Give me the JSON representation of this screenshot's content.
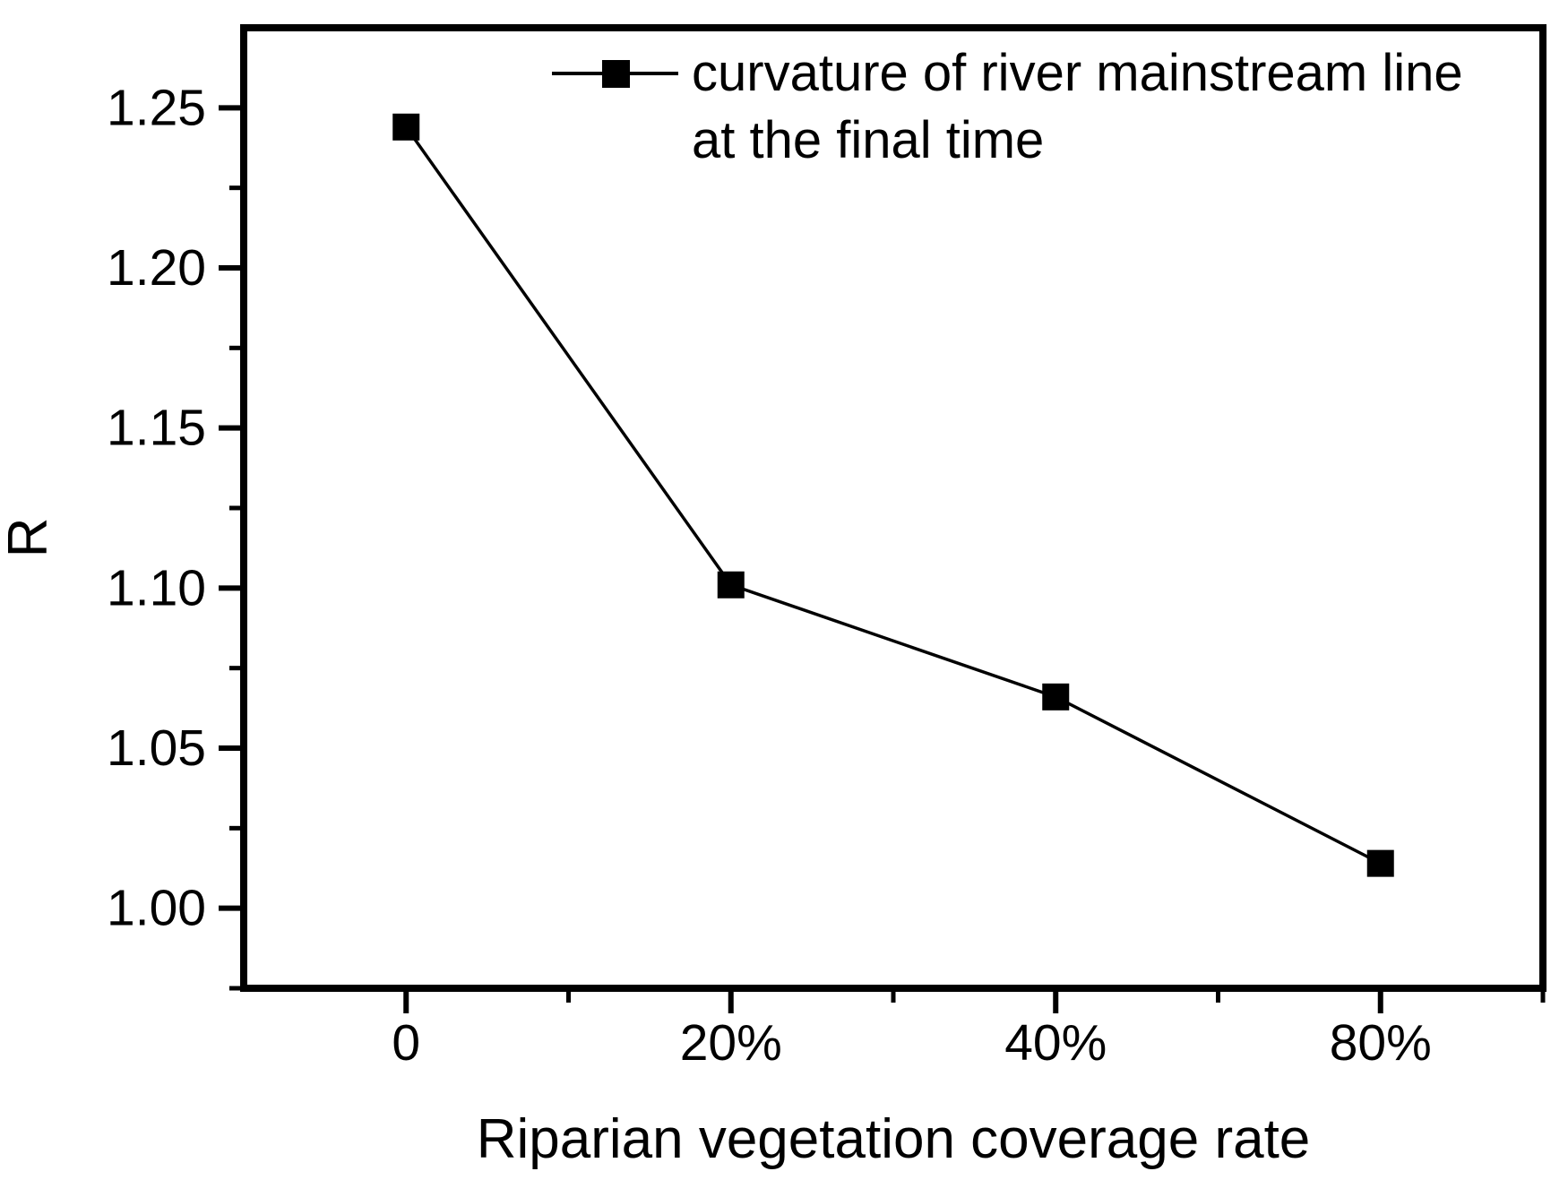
{
  "figure": {
    "background": "#ffffff",
    "foreground": "#000000"
  },
  "chart_data": {
    "type": "line",
    "title": "",
    "xlabel": "Riparian vegetation coverage rate",
    "ylabel": "R",
    "categories": [
      "0",
      "20%",
      "40%",
      "80%"
    ],
    "series": [
      {
        "name": "curvature of river mainstream line at the final time",
        "values": [
          1.244,
          1.101,
          1.066,
          1.014
        ],
        "marker": "filled-square",
        "color": "#000000"
      }
    ],
    "x_positions": [
      0,
      1,
      2,
      3
    ],
    "x_minor_positions": [
      0.5,
      1.5,
      2.5,
      3.5
    ],
    "xlim": [
      -0.5,
      3.5
    ],
    "y_ticks": [
      1.0,
      1.05,
      1.1,
      1.15,
      1.2,
      1.25
    ],
    "y_tick_labels": [
      "1.00",
      "1.05",
      "1.10",
      "1.15",
      "1.20",
      "1.25"
    ],
    "y_minor_ticks": [
      0.975,
      1.025,
      1.075,
      1.125,
      1.175,
      1.225
    ],
    "ylim": [
      0.975,
      1.275
    ],
    "grid": false,
    "legend": {
      "position": "top-right-inside",
      "marker": "line-with-square",
      "lines": [
        "curvature of river mainstream line",
        "at the final time"
      ]
    }
  }
}
